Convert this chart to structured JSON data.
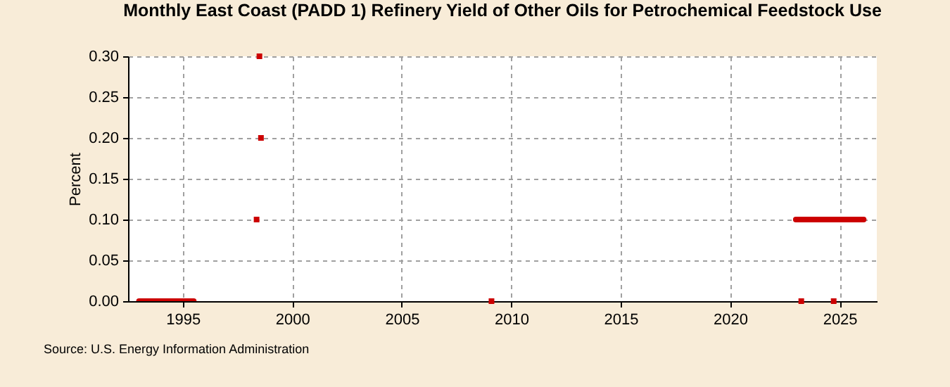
{
  "chart_data": {
    "type": "line",
    "title": "Monthly East Coast (PADD 1) Refinery Yield of Other Oils for Petrochemical Feedstock Use",
    "ylabel": "Percent",
    "annotations": [
      "Source: U.S. Energy Information Administration"
    ],
    "xlim": [
      1992.5,
      2026.7
    ],
    "xticks": [
      1995,
      2000,
      2005,
      2010,
      2015,
      2020,
      2025
    ],
    "ylim": [
      0,
      0.3
    ],
    "yticks": [
      {
        "value": 0,
        "label": "0.00"
      },
      {
        "value": 0.05,
        "label": "0.05"
      },
      {
        "value": 0.1,
        "label": "0.10"
      },
      {
        "value": 0.15,
        "label": "0.15"
      },
      {
        "value": 0.2,
        "label": "0.20"
      },
      {
        "value": 0.25,
        "label": "0.25"
      },
      {
        "value": 0.3,
        "label": "0.30"
      }
    ],
    "grid": true,
    "series": [
      {
        "type": "line",
        "color": "#cc0000",
        "x": [
          1993.0,
          1995.5,
          2010,
          2023.0,
          2026.1
        ],
        "values": [
          0,
          0,
          null,
          0.1,
          0.1
        ]
      },
      {
        "type": "scatter",
        "color": "#cc0000",
        "marker": "square",
        "x": [
          1998.37,
          1998.5,
          1998.57,
          2009.1,
          2023.25,
          2024.73
        ],
        "values": [
          0.1,
          0.3,
          0.2,
          0,
          0,
          0
        ]
      }
    ]
  }
}
